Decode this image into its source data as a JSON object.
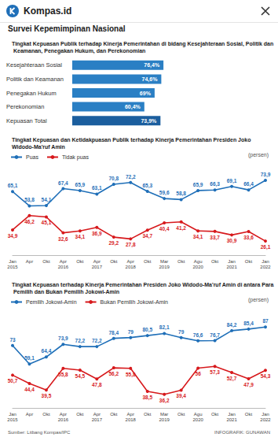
{
  "page": {
    "site": "Kompas.id",
    "title": "Survei Kepemimpinan Nasional",
    "source": "Sumber: Litbang Kompas/IPC",
    "credit": "INFOGRAFIK: GUNAWAN"
  },
  "chart_data": [
    {
      "type": "bar",
      "title": "Tingkat Kepuasan Publik terhadap Kinerja Pemerintahan di bidang Kesejahteraan Sosial, Politik dan Keamanan, Penegakan Hukum, dan Perekonomian",
      "orientation": "horizontal",
      "categories": [
        "Kesejahteraan Sosial",
        "Politik dan Keamanan",
        "Penegakan Hukum",
        "Perekonomian",
        "Kepuasan Total"
      ],
      "values": [
        76.4,
        74.6,
        69,
        60.4,
        73.9
      ],
      "value_labels": [
        "76,4%",
        "74,6%",
        "69%",
        "60,4%",
        "73,9%"
      ],
      "colors": [
        "#2a7fc4",
        "#2a7fc4",
        "#2a7fc4",
        "#2a7fc4",
        "#1b5e9e"
      ],
      "xlim": [
        0,
        100
      ],
      "data_labels": true,
      "tick_labels": "y",
      "grid": false
    },
    {
      "type": "line",
      "title": "Tingkat Kepuasan dan Ketidakpuasan Publik terhadap Kinerja Pemerintahan Presiden Joko Widodo-Ma'ruf Amin",
      "annotation": "(persen)",
      "categories": [
        "Jan\n2015",
        "Apr",
        "Okt",
        "Apr\n2016",
        "Okt",
        "Apr\n2017",
        "Okt",
        "Apr\n2018",
        "Okt",
        "Mar\n2019",
        "Okt",
        "Agu\n2020",
        "Okt",
        "Jan\n2021",
        "Okt",
        "Jan\n2022"
      ],
      "series": [
        {
          "name": "Puas",
          "color": "#1f6fb8",
          "marker": "circle",
          "values": [
            65.1,
            53.8,
            54.1,
            67.4,
            65.9,
            63.1,
            70.8,
            72.2,
            65.3,
            59.6,
            58.8,
            65.9,
            66.3,
            69.1,
            66.4,
            73.9
          ],
          "value_labels": [
            "65,1",
            "53,8",
            "54,1",
            "67,4",
            "65,9",
            "63,1",
            "70,8",
            "72,2",
            "65,3",
            "59,6",
            "58,8",
            "65,9",
            "66,3",
            "69,1",
            "66,4",
            "73,9"
          ]
        },
        {
          "name": "Tidak puas",
          "color": "#d7191c",
          "marker": "circle",
          "values": [
            34.9,
            46.2,
            45.1,
            32.6,
            34.1,
            36.9,
            29.2,
            27.8,
            34.7,
            40.4,
            41.2,
            34.1,
            33.7,
            30.9,
            33.6,
            26.1
          ],
          "value_labels": [
            "34,9",
            "46,2",
            "45,1",
            "32,6",
            "34,1",
            "36,9",
            "29,2",
            "27,8",
            "34,7",
            "40,4",
            "41,2",
            "34,1",
            "33,7",
            "30,9",
            "33,6",
            "26,1"
          ]
        }
      ],
      "ylim": [
        15,
        82
      ],
      "data_labels": true,
      "tick_labels": "x",
      "legend": "top-left",
      "grid": false
    },
    {
      "type": "line",
      "title": "Tingkat Kepuasan terhadap Kinerja Pemerintahan Presiden Joko Widodo-Ma'ruf Amin di antara Para Pemilih dan Bukan Pemilih Jokowi-Amin",
      "annotation": "(persen)",
      "categories": [
        "Jan\n2015",
        "Apr",
        "Okt",
        "Apr\n2016",
        "Okt",
        "Apr\n2017",
        "Okt",
        "Apr\n2018",
        "Okt",
        "Mar\n2019",
        "Okt",
        "Agu\n2020",
        "Okt",
        "Jan\n2021",
        "Okt",
        "Jan\n2022"
      ],
      "series": [
        {
          "name": "Pemilih Jokowi-Amin",
          "color": "#1f6fb8",
          "marker": "circle",
          "values": [
            73,
            59.1,
            64.4,
            73.9,
            72.2,
            72.2,
            78.4,
            79,
            80.5,
            82.1,
            79,
            76.6,
            76.7,
            84.2,
            85.4,
            87
          ],
          "value_labels": [
            "73",
            "59,1",
            "64,4",
            "73,9",
            "72,2",
            "72,2",
            "78,4",
            "79",
            "80,5",
            "82,1",
            "79",
            "76,6",
            "76,7",
            "84,2",
            "85,4",
            "87"
          ]
        },
        {
          "name": "Bukan Pemilih Jokowi-Amin",
          "color": "#d7191c",
          "marker": "circle",
          "values": [
            50.7,
            44.4,
            39.5,
            55.8,
            54.5,
            47.8,
            56.2,
            55.8,
            38.5,
            36.2,
            39.4,
            56,
            57.3,
            52.7,
            47.9,
            54.3
          ],
          "value_labels": [
            "50,7",
            "44,4",
            "39,5",
            "55,8",
            "54,5",
            "47,8",
            "56,2",
            "55,8",
            "38,5",
            "36,2",
            "39,4",
            "56",
            "57,3",
            "52,7",
            "47,9",
            "54,3"
          ]
        }
      ],
      "ylim": [
        26,
        96
      ],
      "data_labels": true,
      "tick_labels": "x",
      "legend": "top-left",
      "grid": false
    }
  ]
}
